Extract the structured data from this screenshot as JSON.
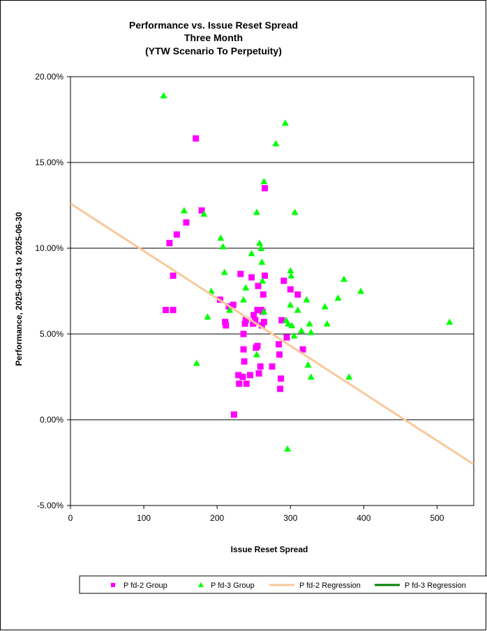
{
  "chart_data": {
    "type": "scatter",
    "title": [
      "Performance vs. Issue Reset Spread",
      "Three Month",
      "(YTW Scenario To Perpetuity)"
    ],
    "xlabel": "Issue  Reset Spread",
    "ylabel": "Performance, 2025-03-31  to 2025-06-30",
    "xlim": [
      0,
      550
    ],
    "ylim": [
      -5,
      20
    ],
    "x_ticks": [
      "0",
      "100",
      "200",
      "300",
      "400",
      "500"
    ],
    "y_ticks": [
      "-5.00%",
      "0.00%",
      "5.00%",
      "10.00%",
      "15.00%",
      "20.00%"
    ],
    "grid": "horizontal",
    "legend_position": "bottom",
    "series": [
      {
        "name": "P fd-2 Group",
        "marker": "square",
        "color": "#ff00ff",
        "points": [
          [
            130,
            6.4
          ],
          [
            135,
            10.3
          ],
          [
            140,
            8.4
          ],
          [
            140,
            6.4
          ],
          [
            145,
            10.8
          ],
          [
            158,
            11.5
          ],
          [
            171,
            16.4
          ],
          [
            179,
            12.2
          ],
          [
            204,
            7.0
          ],
          [
            211,
            5.7
          ],
          [
            212,
            5.5
          ],
          [
            216,
            6.6
          ],
          [
            222,
            6.7
          ],
          [
            223,
            0.3
          ],
          [
            229,
            2.6
          ],
          [
            230,
            2.1
          ],
          [
            232,
            8.5
          ],
          [
            235,
            2.5
          ],
          [
            236,
            4.1
          ],
          [
            236,
            5.0
          ],
          [
            237,
            3.4
          ],
          [
            238,
            5.6
          ],
          [
            239,
            5.8
          ],
          [
            240,
            2.1
          ],
          [
            245,
            2.6
          ],
          [
            247,
            8.3
          ],
          [
            249,
            5.6
          ],
          [
            250,
            6.1
          ],
          [
            252,
            5.8
          ],
          [
            253,
            4.2
          ],
          [
            255,
            6.4
          ],
          [
            255,
            4.3
          ],
          [
            256,
            7.8
          ],
          [
            257,
            2.7
          ],
          [
            259,
            3.1
          ],
          [
            260,
            6.4
          ],
          [
            261,
            5.5
          ],
          [
            262,
            6.3
          ],
          [
            263,
            7.3
          ],
          [
            264,
            5.7
          ],
          [
            265,
            8.4
          ],
          [
            265,
            13.5
          ],
          [
            275,
            3.1
          ],
          [
            284,
            4.4
          ],
          [
            285,
            3.8
          ],
          [
            286,
            1.8
          ],
          [
            287,
            2.4
          ],
          [
            288,
            5.8
          ],
          [
            291,
            8.1
          ],
          [
            295,
            4.8
          ],
          [
            300,
            7.6
          ],
          [
            310,
            7.3
          ],
          [
            317,
            4.1
          ]
        ]
      },
      {
        "name": "P fd-3 Group",
        "marker": "triangle",
        "color": "#00ff00",
        "points": [
          [
            127,
            18.9
          ],
          [
            155,
            12.2
          ],
          [
            182,
            12.0
          ],
          [
            172,
            3.3
          ],
          [
            187,
            6.0
          ],
          [
            192,
            7.5
          ],
          [
            205,
            10.6
          ],
          [
            208,
            10.1
          ],
          [
            210,
            8.6
          ],
          [
            217,
            6.4
          ],
          [
            236,
            7.0
          ],
          [
            239,
            7.7
          ],
          [
            247,
            9.7
          ],
          [
            254,
            3.8
          ],
          [
            254,
            12.1
          ],
          [
            258,
            10.3
          ],
          [
            260,
            10.0
          ],
          [
            261,
            9.2
          ],
          [
            262,
            8.1
          ],
          [
            264,
            6.3
          ],
          [
            264,
            13.9
          ],
          [
            280,
            16.1
          ],
          [
            293,
            17.3
          ],
          [
            294,
            5.8
          ],
          [
            296,
            -1.7
          ],
          [
            297,
            5.6
          ],
          [
            300,
            8.7
          ],
          [
            300,
            6.7
          ],
          [
            301,
            8.4
          ],
          [
            302,
            5.5
          ],
          [
            305,
            4.9
          ],
          [
            306,
            12.1
          ],
          [
            310,
            6.4
          ],
          [
            315,
            5.2
          ],
          [
            322,
            7.0
          ],
          [
            324,
            3.2
          ],
          [
            326,
            5.6
          ],
          [
            328,
            5.1
          ],
          [
            328,
            2.5
          ],
          [
            347,
            6.6
          ],
          [
            350,
            5.6
          ],
          [
            365,
            7.1
          ],
          [
            373,
            8.2
          ],
          [
            380,
            2.5
          ],
          [
            396,
            7.5
          ],
          [
            517,
            5.7
          ]
        ]
      },
      {
        "name": "P fd-2 Regression",
        "type": "line",
        "color": "#f8c89a",
        "points": [
          [
            0,
            12.6
          ],
          [
            550,
            -2.6
          ]
        ]
      },
      {
        "name": "P fd-3 Regression",
        "type": "line",
        "color": "#008000",
        "points": []
      }
    ]
  }
}
